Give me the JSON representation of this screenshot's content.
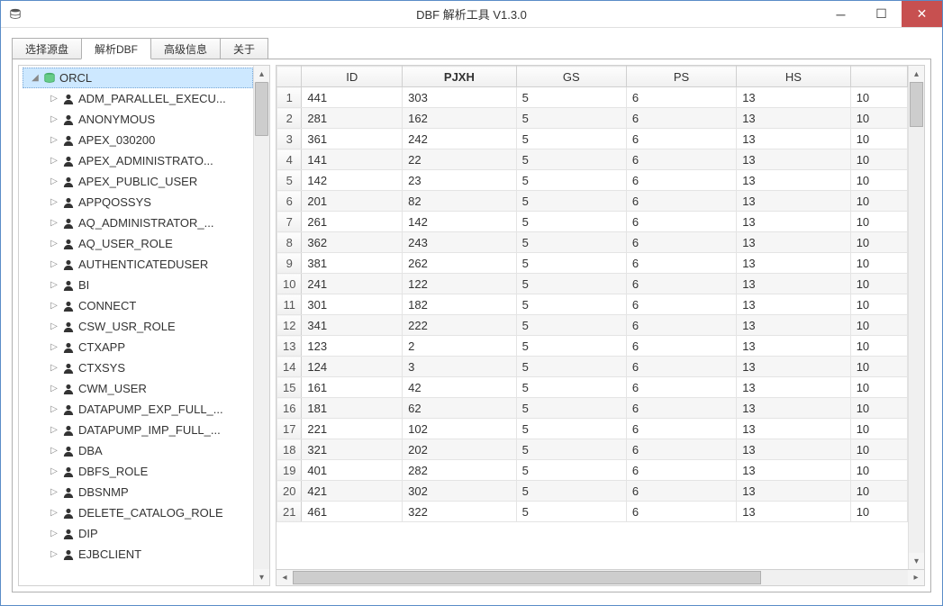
{
  "window": {
    "title": "DBF 解析工具  V1.3.0"
  },
  "tabs": [
    {
      "label": "选择源盘",
      "active": false
    },
    {
      "label": "解析DBF",
      "active": true
    },
    {
      "label": "高级信息",
      "active": false
    },
    {
      "label": "关于",
      "active": false
    }
  ],
  "tree": {
    "root": "ORCL",
    "items": [
      "ADM_PARALLEL_EXECU...",
      "ANONYMOUS",
      "APEX_030200",
      "APEX_ADMINISTRATO...",
      "APEX_PUBLIC_USER",
      "APPQOSSYS",
      "AQ_ADMINISTRATOR_...",
      "AQ_USER_ROLE",
      "AUTHENTICATEDUSER",
      "BI",
      "CONNECT",
      "CSW_USR_ROLE",
      "CTXAPP",
      "CTXSYS",
      "CWM_USER",
      "DATAPUMP_EXP_FULL_...",
      "DATAPUMP_IMP_FULL_...",
      "DBA",
      "DBFS_ROLE",
      "DBSNMP",
      "DELETE_CATALOG_ROLE",
      "DIP",
      "EJBCLIENT"
    ]
  },
  "grid": {
    "columns": [
      "ID",
      "PJXH",
      "GS",
      "PS",
      "HS",
      ""
    ],
    "sort_col": 1,
    "rows": [
      [
        "441",
        "303",
        "5",
        "6",
        "13",
        "10"
      ],
      [
        "281",
        "162",
        "5",
        "6",
        "13",
        "10"
      ],
      [
        "361",
        "242",
        "5",
        "6",
        "13",
        "10"
      ],
      [
        "141",
        "22",
        "5",
        "6",
        "13",
        "10"
      ],
      [
        "142",
        "23",
        "5",
        "6",
        "13",
        "10"
      ],
      [
        "201",
        "82",
        "5",
        "6",
        "13",
        "10"
      ],
      [
        "261",
        "142",
        "5",
        "6",
        "13",
        "10"
      ],
      [
        "362",
        "243",
        "5",
        "6",
        "13",
        "10"
      ],
      [
        "381",
        "262",
        "5",
        "6",
        "13",
        "10"
      ],
      [
        "241",
        "122",
        "5",
        "6",
        "13",
        "10"
      ],
      [
        "301",
        "182",
        "5",
        "6",
        "13",
        "10"
      ],
      [
        "341",
        "222",
        "5",
        "6",
        "13",
        "10"
      ],
      [
        "123",
        "2",
        "5",
        "6",
        "13",
        "10"
      ],
      [
        "124",
        "3",
        "5",
        "6",
        "13",
        "10"
      ],
      [
        "161",
        "42",
        "5",
        "6",
        "13",
        "10"
      ],
      [
        "181",
        "62",
        "5",
        "6",
        "13",
        "10"
      ],
      [
        "221",
        "102",
        "5",
        "6",
        "13",
        "10"
      ],
      [
        "321",
        "202",
        "5",
        "6",
        "13",
        "10"
      ],
      [
        "401",
        "282",
        "5",
        "6",
        "13",
        "10"
      ],
      [
        "421",
        "302",
        "5",
        "6",
        "13",
        "10"
      ],
      [
        "461",
        "322",
        "5",
        "6",
        "13",
        "10"
      ]
    ]
  }
}
